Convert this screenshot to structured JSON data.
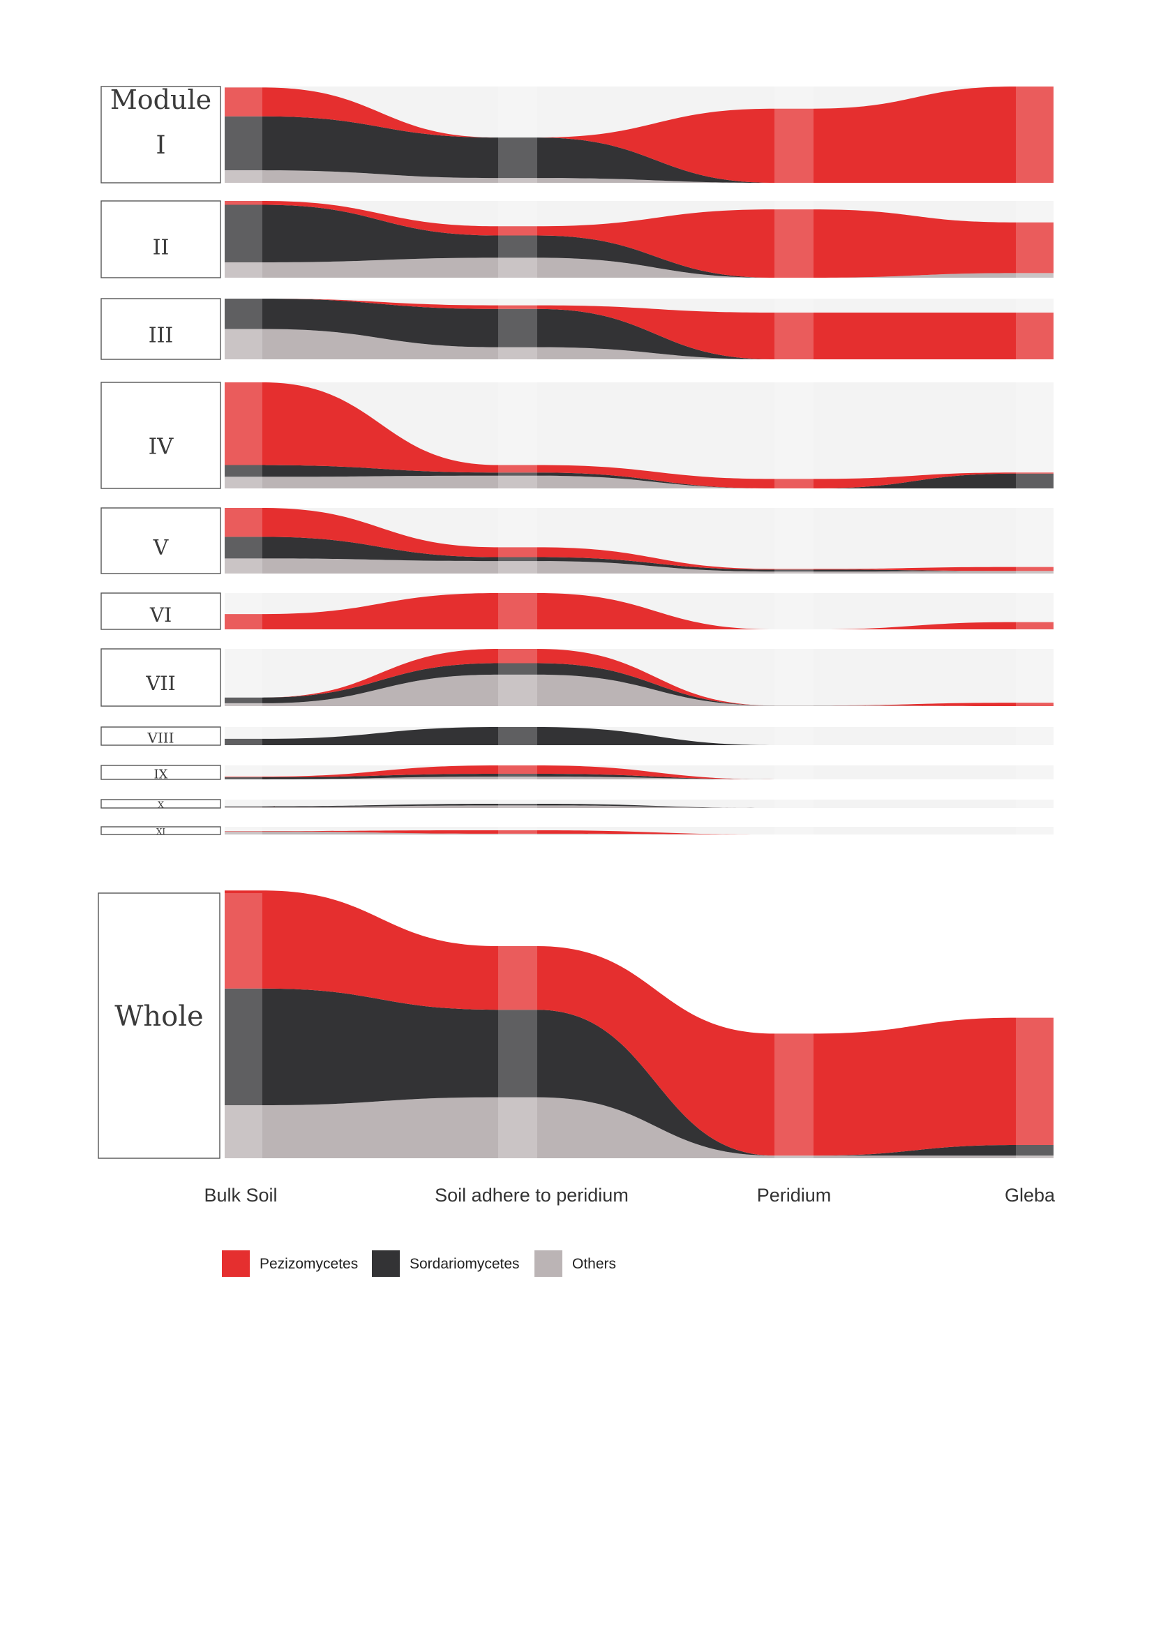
{
  "chart_data": {
    "type": "area",
    "header_label": "Module",
    "x_categories": [
      "Bulk Soil",
      "Soil adhere to peridium",
      "Peridium",
      "Gleba"
    ],
    "legend": [
      {
        "name": "Pezizomycetes",
        "color": "#e52f2f"
      },
      {
        "name": "Sordariomycetes",
        "color": "#333335"
      },
      {
        "name": "Others",
        "color": "#bbb4b5"
      }
    ],
    "colors": {
      "pez": "#e52f2f",
      "sord": "#333335",
      "oth": "#bbb4b5",
      "band": "#f3f3f3"
    },
    "grid": false,
    "legend_position": "bottom",
    "modules": [
      {
        "label": "I",
        "values": [
          [
            0.3,
            0.56,
            0.13
          ],
          [
            0.0,
            0.42,
            0.05
          ],
          [
            0.77,
            0.0,
            0.0
          ],
          [
            1.0,
            0.0,
            0.0
          ]
        ]
      },
      {
        "label": "II",
        "values": [
          [
            0.05,
            0.75,
            0.2
          ],
          [
            0.12,
            0.29,
            0.26
          ],
          [
            0.89,
            0.0,
            0.0
          ],
          [
            0.66,
            0.0,
            0.06
          ]
        ]
      },
      {
        "label": "III",
        "values": [
          [
            0.0,
            0.5,
            0.5
          ],
          [
            0.06,
            0.63,
            0.2
          ],
          [
            0.77,
            0.0,
            0.0
          ],
          [
            0.77,
            0.0,
            0.0
          ]
        ]
      },
      {
        "label": "IV",
        "values": [
          [
            0.78,
            0.11,
            0.11
          ],
          [
            0.07,
            0.03,
            0.12
          ],
          [
            0.09,
            0.0,
            0.0
          ],
          [
            0.01,
            0.14,
            0.0
          ]
        ]
      },
      {
        "label": "V",
        "values": [
          [
            0.44,
            0.33,
            0.23
          ],
          [
            0.15,
            0.06,
            0.19
          ],
          [
            0.01,
            0.03,
            0.03
          ],
          [
            0.06,
            0.0,
            0.04
          ]
        ]
      },
      {
        "label": "VI",
        "values": [
          [
            0.42,
            0.0,
            0.0
          ],
          [
            1.0,
            0.0,
            0.0
          ],
          [
            0.0,
            0.0,
            0.0
          ],
          [
            0.2,
            0.0,
            0.0
          ]
        ]
      },
      {
        "label": "VII",
        "values": [
          [
            0.0,
            0.1,
            0.05
          ],
          [
            0.25,
            0.2,
            0.55
          ],
          [
            0.0,
            0.0,
            0.01
          ],
          [
            0.06,
            0.0,
            0.0
          ]
        ]
      },
      {
        "label": "VIII",
        "values": [
          [
            0.0,
            0.35,
            0.0
          ],
          [
            0.0,
            1.0,
            0.0
          ],
          [
            0.0,
            0.0,
            0.0
          ],
          [
            0.0,
            0.0,
            0.0
          ]
        ]
      },
      {
        "label": "IX",
        "values": [
          [
            0.05,
            0.15,
            0.0
          ],
          [
            0.6,
            0.2,
            0.2
          ],
          [
            0.0,
            0.0,
            0.0
          ],
          [
            0.0,
            0.0,
            0.0
          ]
        ]
      },
      {
        "label": "X",
        "values": [
          [
            0.0,
            0.1,
            0.1
          ],
          [
            0.0,
            0.2,
            0.3
          ],
          [
            0.0,
            0.0,
            0.0
          ],
          [
            0.0,
            0.0,
            0.0
          ]
        ]
      },
      {
        "label": "XI",
        "values": [
          [
            0.05,
            0.0,
            0.4
          ],
          [
            0.45,
            0.0,
            0.1
          ],
          [
            0.0,
            0.0,
            0.0
          ],
          [
            0.0,
            0.0,
            0.0
          ]
        ]
      }
    ],
    "whole": {
      "label": "Whole",
      "values": [
        [
          0.37,
          0.44,
          0.2
        ],
        [
          0.24,
          0.33,
          0.23
        ],
        [
          0.46,
          0.0,
          0.01
        ],
        [
          0.48,
          0.04,
          0.01
        ]
      ]
    }
  }
}
